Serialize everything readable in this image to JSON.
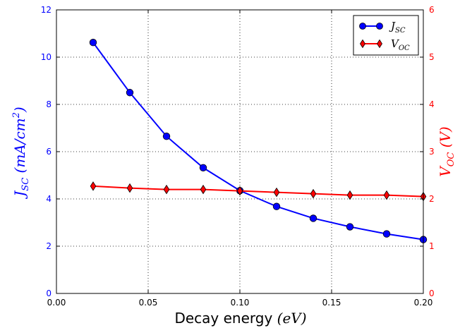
{
  "chart_data": {
    "type": "line",
    "xlabel": {
      "text": "Decay energy ",
      "unit": "(eV)"
    },
    "ylabel_left": {
      "main": "J",
      "sub": "SC",
      "unit": "(mA/cm",
      "sup": "2",
      "close": ")"
    },
    "ylabel_right": {
      "main": "V",
      "sub": "OC",
      "unit": "(V)"
    },
    "x": [
      0.02,
      0.04,
      0.06,
      0.08,
      0.1,
      0.12,
      0.14,
      0.16,
      0.18,
      0.2
    ],
    "xlim": [
      0.0,
      0.2
    ],
    "xticks": [
      "0.00",
      "0.05",
      "0.10",
      "0.15",
      "0.20"
    ],
    "xtick_values": [
      0.0,
      0.05,
      0.1,
      0.15,
      0.2
    ],
    "ylim_left": [
      0,
      12
    ],
    "yticks_left": [
      "0",
      "2",
      "4",
      "6",
      "8",
      "10",
      "12"
    ],
    "ylim_right": [
      0,
      6
    ],
    "yticks_right": [
      "0",
      "1",
      "2",
      "3",
      "4",
      "5",
      "6"
    ],
    "grid": true,
    "legend_position": "top-right",
    "series": [
      {
        "name": "J",
        "name_sub": "SC",
        "axis": "left",
        "color": "#0000ff",
        "marker": "circle",
        "values": [
          10.62,
          8.5,
          6.65,
          5.32,
          4.35,
          3.68,
          3.18,
          2.82,
          2.52,
          2.28
        ]
      },
      {
        "name": "V",
        "name_sub": "OC",
        "axis": "right",
        "color": "#ff0000",
        "marker": "diamond",
        "values": [
          2.27,
          2.23,
          2.2,
          2.2,
          2.17,
          2.14,
          2.11,
          2.08,
          2.08,
          2.05
        ]
      }
    ]
  }
}
